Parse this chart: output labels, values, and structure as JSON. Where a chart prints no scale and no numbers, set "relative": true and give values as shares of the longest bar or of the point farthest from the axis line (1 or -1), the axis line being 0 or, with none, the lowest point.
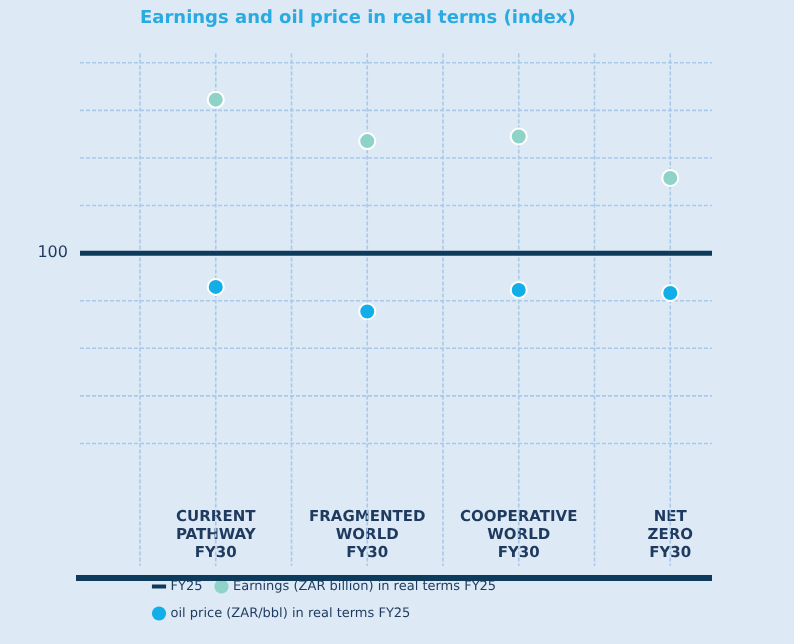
{
  "chart_data": {
    "type": "scatter",
    "title": "Earnings and oil price in real terms (index)",
    "relative": true,
    "categories": [
      "CURRENT PATHWAY FY30",
      "FRAGMENTED WORLD FY30",
      "COOPERATIVE WORLD FY30",
      "NET ZERO FY30"
    ],
    "series": [
      {
        "name": "Earnings (ZAR billion) in real terms FY25",
        "color": "#8fd3c8",
        "values": [
          1,
          0.73,
          0.76,
          0.49
        ]
      },
      {
        "name": "oil price (ZAR/bbl) in real terms FY25",
        "color": "#12aee8",
        "values": [
          -0.22,
          -0.38,
          -0.24,
          -0.26
        ]
      }
    ],
    "ref_lines": [
      {
        "axis": "y",
        "value": 0,
        "label": "FY25",
        "color": "#0e3a5c"
      }
    ],
    "annotations": [
      "100"
    ],
    "grid": true,
    "legend": "bottom",
    "marker": "circle"
  }
}
